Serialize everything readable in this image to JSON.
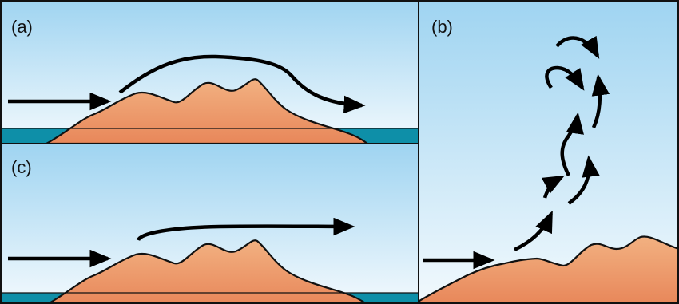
{
  "panels": [
    {
      "id": "a",
      "label": "(a)"
    },
    {
      "id": "b",
      "label": "(b)"
    },
    {
      "id": "c",
      "label": "(c)"
    }
  ],
  "colors": {
    "sky_top": "#9fd4f1",
    "sky_bottom": "#f2f9fd",
    "mountain_top": "#f2b181",
    "mountain_bottom": "#e8875a",
    "water": "#0e8fa8",
    "outline": "#111111",
    "arrow": "#000000"
  }
}
